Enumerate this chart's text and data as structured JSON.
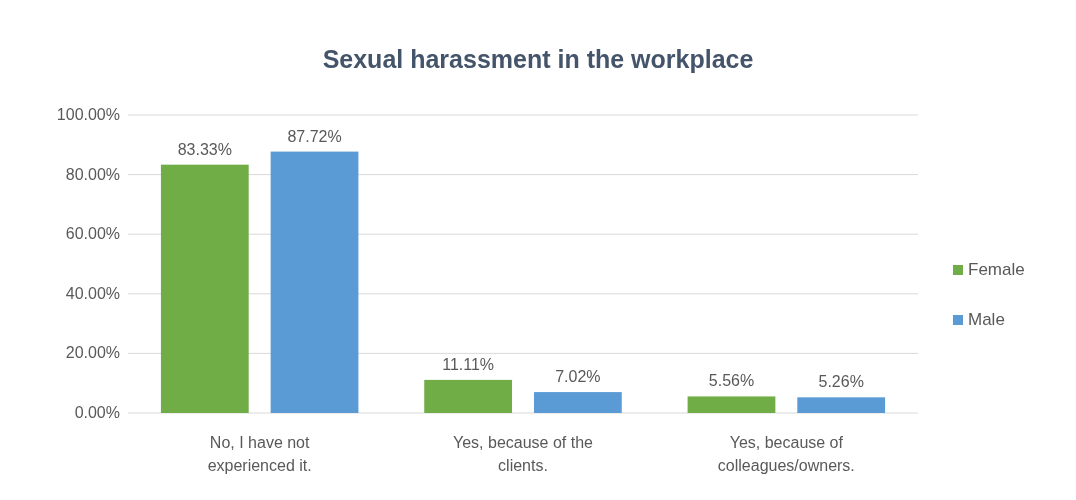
{
  "chart_data": {
    "type": "bar",
    "title": "Sexual harassment in the workplace",
    "categories": [
      "No, I have not experienced it.",
      "Yes, because of the clients.",
      "Yes, because of colleagues/owners."
    ],
    "series": [
      {
        "name": "Female",
        "color": "#70ad47",
        "values": [
          83.33,
          11.11,
          5.56
        ],
        "value_labels": [
          "83.33%",
          "11.11%",
          "5.56%"
        ]
      },
      {
        "name": "Male",
        "color": "#5b9bd5",
        "values": [
          87.72,
          7.02,
          5.26
        ],
        "value_labels": [
          "87.72%",
          "7.02%",
          "5.26%"
        ]
      }
    ],
    "ylim": [
      0,
      100
    ],
    "yticks": [
      {
        "value": 0,
        "label": "0.00%"
      },
      {
        "value": 20,
        "label": "20.00%"
      },
      {
        "value": 40,
        "label": "40.00%"
      },
      {
        "value": 60,
        "label": "60.00%"
      },
      {
        "value": 80,
        "label": "80.00%"
      },
      {
        "value": 100,
        "label": "100.00%"
      }
    ],
    "grid": "y",
    "legend": "right"
  }
}
